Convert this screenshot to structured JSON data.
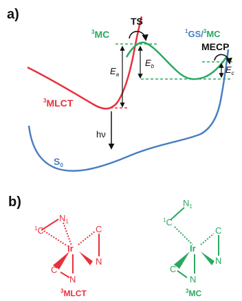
{
  "panels": {
    "a": "a)",
    "b": "b)"
  },
  "labels": {
    "ts": "TS",
    "mecp": "MECP",
    "mc_sup": "3",
    "mc_text": "MC",
    "mlct_sup": "3",
    "mlct_text": "MLCT",
    "gs_sup1": "1",
    "gs_text1": "GS/",
    "gs_sup2": "3",
    "gs_text2": "MC",
    "s0_text": "S",
    "s0_sub": "0",
    "hv": "hν",
    "ea": "E",
    "ea_sub": "a",
    "eb": "E",
    "eb_sub": "b",
    "ec": "E",
    "ec_sub": "c"
  },
  "structures": {
    "left": {
      "caption_sup": "3",
      "caption_text": "MLCT",
      "n1": "N",
      "n1_sub": "1",
      "c1_sup": "1",
      "c1": "C",
      "ir": "Ir",
      "c_right": "C",
      "c_bottom": "C",
      "n_bottom": "N",
      "n_right": "N"
    },
    "right": {
      "caption_sup": "3",
      "caption_text": "MC",
      "n1": "N",
      "n1_sub": "1",
      "c1_sup": "1",
      "c1": "C",
      "ir": "Ir",
      "c_right": "C",
      "c_bottom": "C",
      "n_bottom": "N",
      "n_right": "N"
    }
  },
  "colors": {
    "red": "#e8303a",
    "green": "#2aa860",
    "blue": "#4a7ec0",
    "black": "#111111"
  }
}
